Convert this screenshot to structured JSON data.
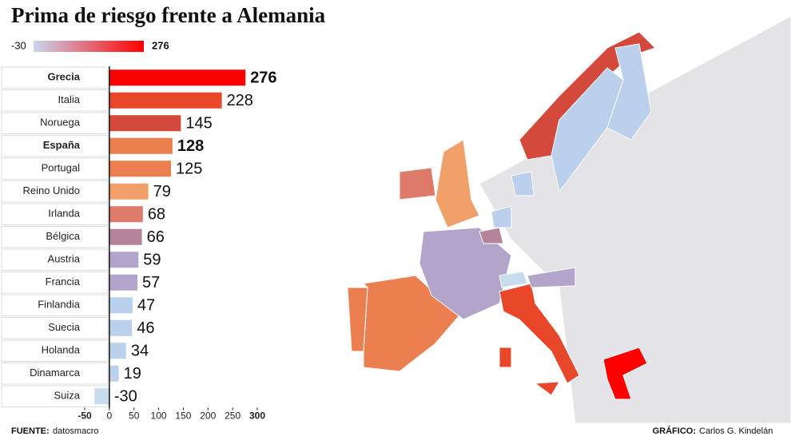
{
  "chart_data": {
    "type": "bar",
    "orientation": "horizontal",
    "title": "Prima de riesgo frente a Alemania",
    "legend": {
      "min": -30,
      "max": 276
    },
    "categories": [
      "Grecia",
      "Italia",
      "Noruega",
      "España",
      "Portugal",
      "Reino Unido",
      "Irlanda",
      "Bélgica",
      "Austria",
      "Francia",
      "Finlandia",
      "Suecia",
      "Holanda",
      "Dinamarca",
      "Suiza"
    ],
    "values": [
      276,
      228,
      145,
      128,
      125,
      79,
      68,
      66,
      59,
      57,
      47,
      46,
      34,
      19,
      -30
    ],
    "colors": [
      "#ff0000",
      "#e8472a",
      "#d34a3d",
      "#ec7f50",
      "#ec7f50",
      "#f2a06a",
      "#dd7a6a",
      "#b5849a",
      "#b3a4cc",
      "#b3a4cc",
      "#bad0ec",
      "#bad0ec",
      "#bad0ec",
      "#bad0ec",
      "#c8dcf0"
    ],
    "highlight": [
      "Grecia",
      "España"
    ],
    "xlim": [
      -50,
      300
    ],
    "xticks": [
      -50,
      0,
      50,
      100,
      150,
      200,
      250,
      300
    ],
    "source_label": "FUENTE:",
    "source": "datosmacro",
    "credit_label": "GRÁFICO:",
    "credit": "Carlos G. Kindelán"
  }
}
